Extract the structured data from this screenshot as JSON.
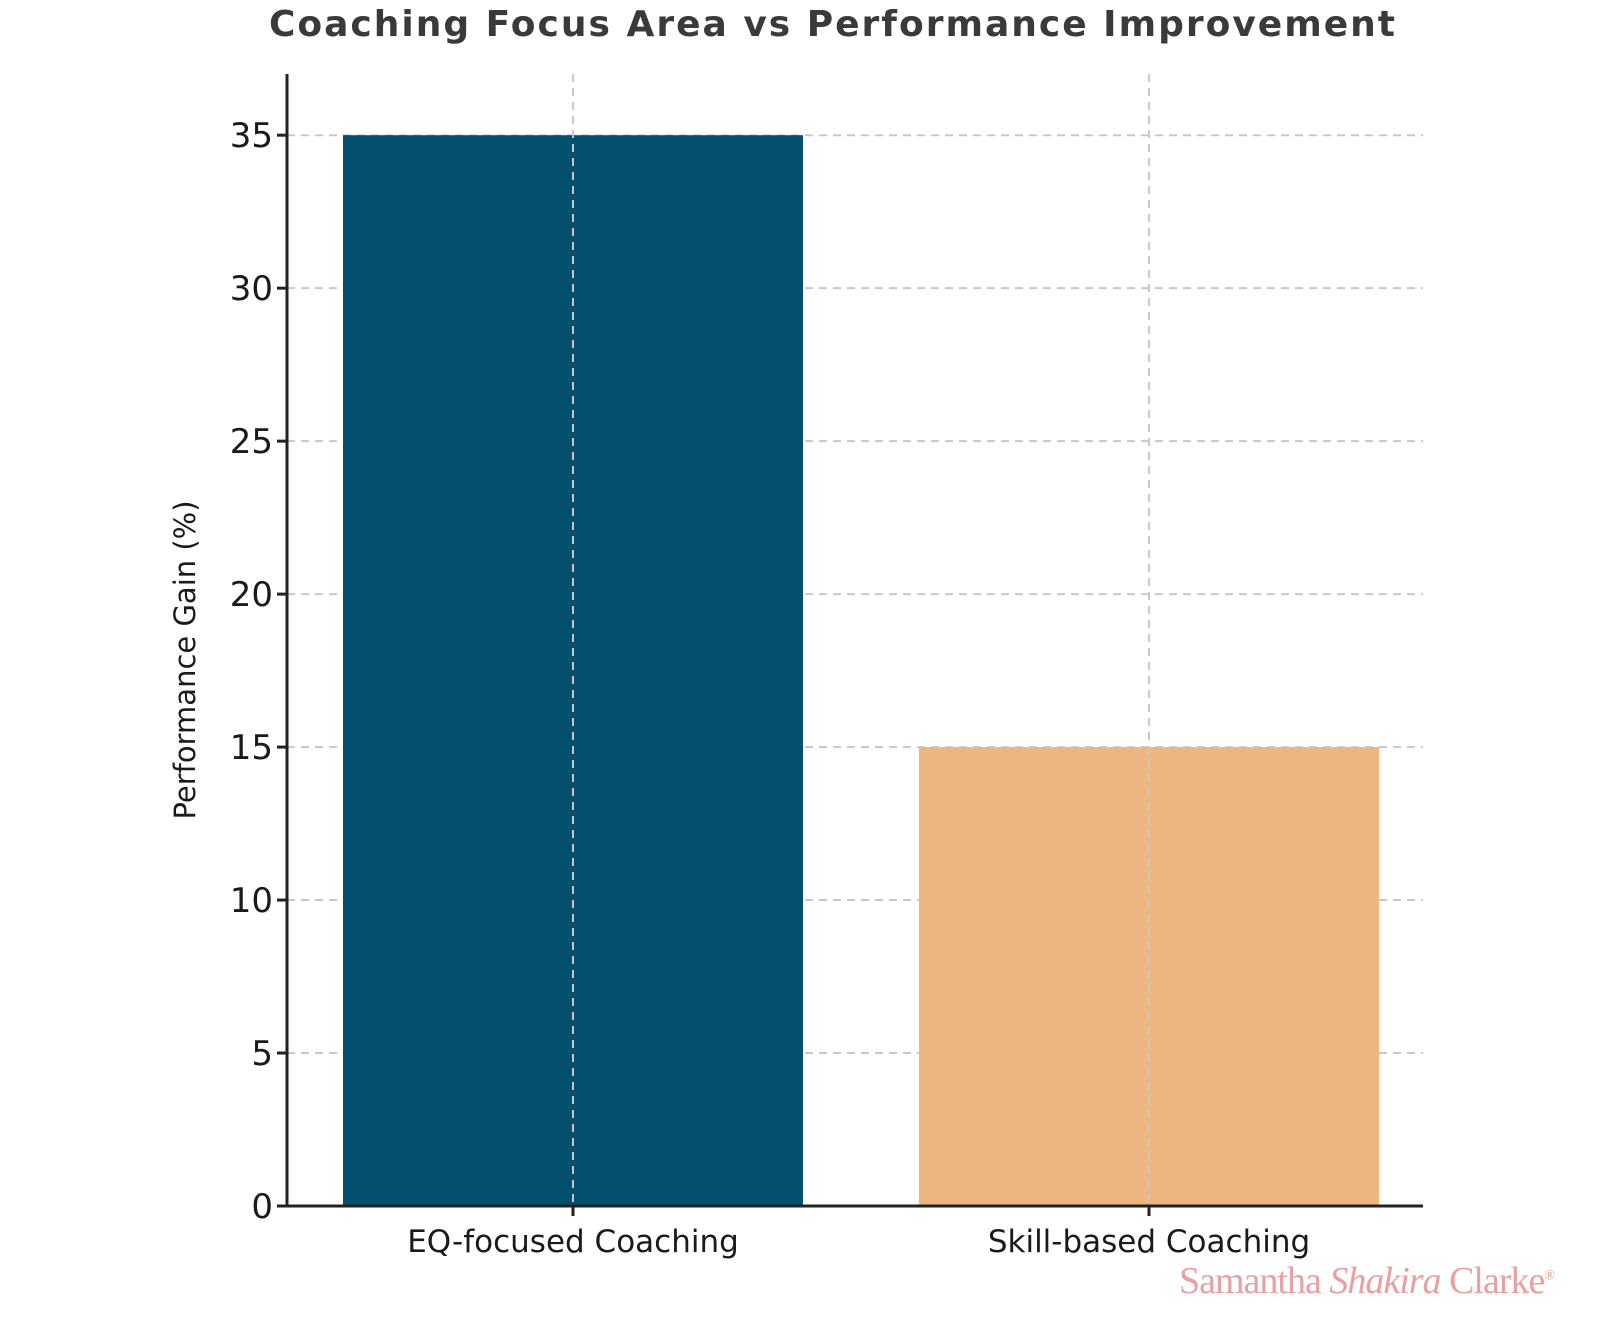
{
  "chart_data": {
    "type": "bar",
    "title": "Coaching Focus Area vs Performance Improvement",
    "xlabel": "",
    "ylabel": "Performance Gain (%)",
    "categories": [
      "EQ-focused Coaching",
      "Skill-based Coaching"
    ],
    "values": [
      35,
      15
    ],
    "colors": [
      "#02506e",
      "#edb681"
    ],
    "ylim": [
      0,
      37
    ],
    "yticks": [
      0,
      5,
      10,
      15,
      20,
      25,
      30,
      35
    ],
    "grid": true,
    "legend": "none"
  },
  "watermark": {
    "first": "Samantha",
    "middle": "Shakira",
    "last": "Clarke",
    "mark": "®",
    "color": "#e8a0a0"
  }
}
